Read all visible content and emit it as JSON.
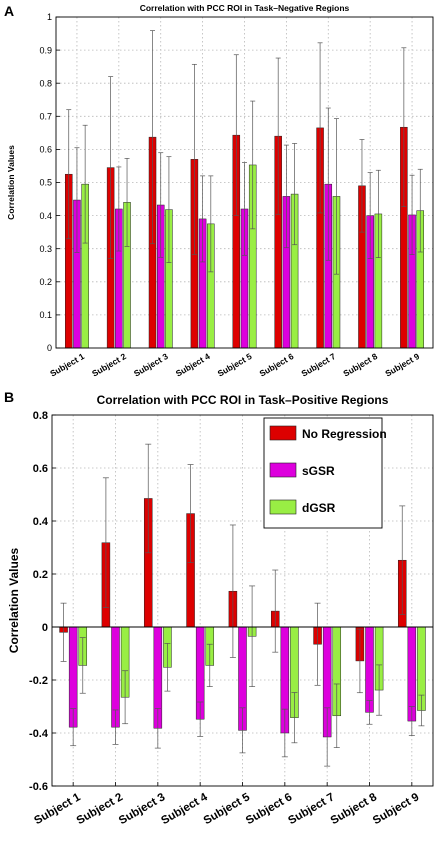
{
  "colors": {
    "no_regression": "#dd0000",
    "sgsr": "#dd00dd",
    "dgsr": "#99ee44",
    "axis": "#000000",
    "grid": "#b8b8b8",
    "errorbar": "#555555"
  },
  "chart_data": [
    {
      "type": "bar",
      "panel_label": "A",
      "title": "Correlation with PCC ROI in Task–Negative Regions",
      "xlabel": "",
      "ylabel": "Correlation Values",
      "ylim": [
        0,
        1
      ],
      "yticks": [
        "0",
        "0.1",
        "0.2",
        "0.3",
        "0.4",
        "0.5",
        "0.6",
        "0.7",
        "0.8",
        "0.9",
        "1"
      ],
      "categories": [
        "Subject 1",
        "Subject 2",
        "Subject 3",
        "Subject 4",
        "Subject 5",
        "Subject 6",
        "Subject 7",
        "Subject 8",
        "Subject 9"
      ],
      "grid": true,
      "legend": null,
      "series": [
        {
          "color_key": "no_regression",
          "values": [
            0.525,
            0.545,
            0.637,
            0.57,
            0.643,
            0.64,
            0.665,
            0.49,
            0.667
          ],
          "errors": [
            0.195,
            0.275,
            0.322,
            0.287,
            0.243,
            0.236,
            0.257,
            0.14,
            0.24
          ]
        },
        {
          "color_key": "sgsr",
          "values": [
            0.447,
            0.42,
            0.432,
            0.39,
            0.42,
            0.458,
            0.495,
            0.4,
            0.402
          ],
          "errors": [
            0.158,
            0.127,
            0.158,
            0.13,
            0.14,
            0.155,
            0.23,
            0.13,
            0.12
          ]
        },
        {
          "color_key": "dgsr",
          "values": [
            0.495,
            0.44,
            0.418,
            0.375,
            0.553,
            0.465,
            0.458,
            0.405,
            0.415
          ],
          "errors": [
            0.178,
            0.133,
            0.16,
            0.145,
            0.193,
            0.153,
            0.235,
            0.132,
            0.125
          ]
        }
      ]
    },
    {
      "type": "bar",
      "panel_label": "B",
      "title": "Correlation with PCC ROI in Task–Positive Regions",
      "xlabel": "",
      "ylabel": "Correlation Values",
      "ylim": [
        -0.6,
        0.8
      ],
      "yticks": [
        "-0.6",
        "-0.4",
        "-0.2",
        "0",
        "0.2",
        "0.4",
        "0.6",
        "0.8"
      ],
      "categories": [
        "Subject 1",
        "Subject 2",
        "Subject 3",
        "Subject 4",
        "Subject 5",
        "Subject 6",
        "Subject 7",
        "Subject 8",
        "Subject 9"
      ],
      "grid": true,
      "legend": {
        "position": "top-right",
        "entries": [
          "No Regression",
          "sGSR",
          "dGSR"
        ]
      },
      "series": [
        {
          "name": "No Regression",
          "color_key": "no_regression",
          "values": [
            -0.02,
            0.318,
            0.485,
            0.428,
            0.135,
            0.06,
            -0.065,
            -0.128,
            0.252
          ],
          "errors": [
            0.11,
            0.245,
            0.205,
            0.185,
            0.25,
            0.155,
            0.155,
            0.12,
            0.205
          ]
        },
        {
          "name": "sGSR",
          "color_key": "sgsr",
          "values": [
            -0.378,
            -0.378,
            -0.382,
            -0.348,
            -0.39,
            -0.4,
            -0.415,
            -0.322,
            -0.355
          ],
          "errors": [
            0.07,
            0.065,
            0.075,
            0.065,
            0.085,
            0.09,
            0.11,
            0.045,
            0.055
          ]
        },
        {
          "name": "dGSR",
          "color_key": "dgsr",
          "values": [
            -0.145,
            -0.265,
            -0.152,
            -0.145,
            -0.035,
            -0.342,
            -0.335,
            -0.238,
            -0.315
          ],
          "errors": [
            0.105,
            0.1,
            0.09,
            0.08,
            0.19,
            0.095,
            0.12,
            0.095,
            0.058
          ]
        }
      ]
    }
  ]
}
